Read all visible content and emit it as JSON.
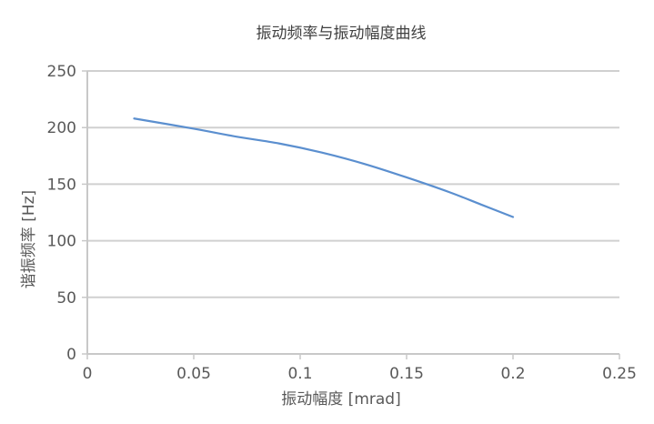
{
  "chart_data": {
    "type": "line",
    "title": "振动频率与振动幅度曲线",
    "xlabel": "振动幅度 [mrad]",
    "ylabel": "谐振频率 [Hz]",
    "xlim": [
      0,
      0.25
    ],
    "ylim": [
      0,
      250
    ],
    "xticks": [
      0,
      0.05,
      0.1,
      0.15,
      0.2,
      0.25
    ],
    "xtick_labels": [
      "0",
      "0.05",
      "0.1",
      "0.15",
      "0.2",
      "0.25"
    ],
    "yticks": [
      0,
      50,
      100,
      150,
      200,
      250
    ],
    "ytick_labels": [
      "0",
      "50",
      "100",
      "150",
      "200",
      "250"
    ],
    "grid": true,
    "series": [
      {
        "color": "#5b8fcf",
        "x": [
          0.022,
          0.05,
          0.07,
          0.09,
          0.11,
          0.13,
          0.15,
          0.17,
          0.185,
          0.2
        ],
        "y": [
          208,
          199,
          192,
          186,
          178,
          168,
          156,
          143,
          132,
          121
        ]
      }
    ]
  }
}
